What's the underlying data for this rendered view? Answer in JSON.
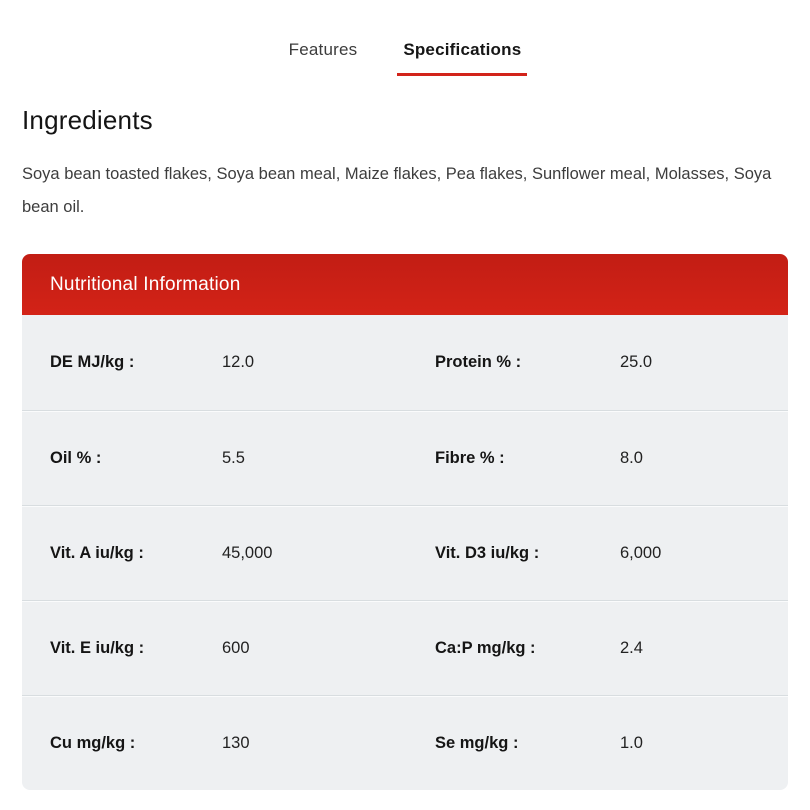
{
  "tabs": [
    {
      "label": "Features",
      "active": false
    },
    {
      "label": "Specifications",
      "active": true
    }
  ],
  "ingredients": {
    "title": "Ingredients",
    "text": "Soya bean toasted flakes, Soya bean meal, Maize flakes, Pea flakes, Sunflower meal, Molasses, Soya bean oil."
  },
  "nutrition": {
    "title": "Nutritional Information",
    "rows": [
      [
        {
          "label": "DE MJ/kg :",
          "value": "12.0"
        },
        {
          "label": "Protein % :",
          "value": "25.0"
        }
      ],
      [
        {
          "label": "Oil % :",
          "value": "5.5"
        },
        {
          "label": "Fibre % :",
          "value": "8.0"
        }
      ],
      [
        {
          "label": "Vit. A iu/kg :",
          "value": "45,000"
        },
        {
          "label": "Vit. D3 iu/kg :",
          "value": "6,000"
        }
      ],
      [
        {
          "label": "Vit. E iu/kg :",
          "value": "600"
        },
        {
          "label": "Ca:P mg/kg :",
          "value": "2.4"
        }
      ],
      [
        {
          "label": "Cu mg/kg :",
          "value": "130"
        },
        {
          "label": "Se mg/kg :",
          "value": "1.0"
        }
      ]
    ]
  },
  "colors": {
    "accent_red": "#d2231a",
    "header_red": "#cd2016",
    "row_background": "#eef0f2"
  }
}
